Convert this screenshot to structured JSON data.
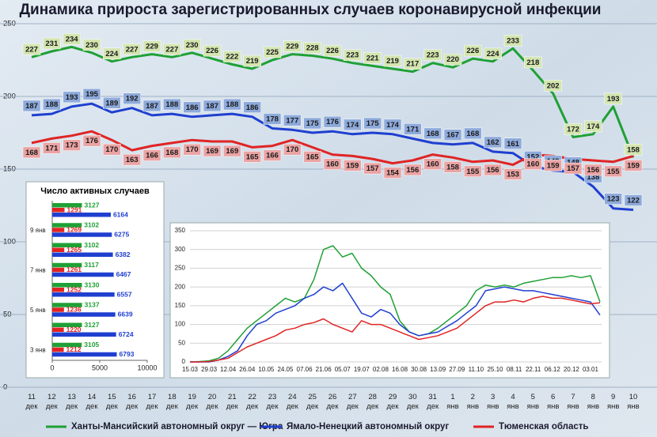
{
  "chart_data": [
    {
      "type": "line",
      "title": "Динамика прироста зарегистрированных случаев коронавирусной инфекции",
      "categories": [
        "11 дек",
        "12 дек",
        "13 дек",
        "14 дек",
        "15 дек",
        "16 дек",
        "17 дек",
        "18 дек",
        "19 дек",
        "20 дек",
        "21 дек",
        "22 дек",
        "23 дек",
        "24 дек",
        "25 дек",
        "26 дек",
        "27 дек",
        "28 дек",
        "29 дек",
        "30 дек",
        "31 дек",
        "1 янв",
        "2 янв",
        "3 янв",
        "4 янв",
        "5 янв",
        "6 янв",
        "7 янв",
        "8 янв",
        "9 янв",
        "10 янв"
      ],
      "series": [
        {
          "name": "Ханты-Мансийский автономный округ — Югра",
          "color": "#1fa035",
          "values": [
            227,
            231,
            234,
            230,
            224,
            227,
            229,
            227,
            230,
            226,
            222,
            219,
            225,
            229,
            228,
            226,
            223,
            221,
            219,
            217,
            223,
            220,
            226,
            224,
            233,
            218,
            202,
            172,
            174,
            193,
            158
          ]
        },
        {
          "name": "Ямало-Ненецкий автономный округ",
          "color": "#1f3fd0",
          "values": [
            187,
            188,
            193,
            195,
            189,
            192,
            187,
            188,
            186,
            187,
            188,
            186,
            178,
            177,
            175,
            176,
            174,
            175,
            174,
            171,
            168,
            167,
            168,
            162,
            161,
            152,
            149,
            148,
            138,
            123,
            122
          ]
        },
        {
          "name": "Тюменская область",
          "color": "#e02424",
          "values": [
            168,
            171,
            173,
            176,
            170,
            163,
            166,
            168,
            170,
            169,
            169,
            165,
            166,
            170,
            165,
            160,
            159,
            157,
            154,
            156,
            160,
            158,
            155,
            156,
            153,
            160,
            159,
            157,
            156,
            155,
            159
          ]
        }
      ],
      "ylim": [
        0,
        250
      ],
      "yticks": [
        0,
        50,
        100,
        150,
        200,
        250
      ],
      "grid": true
    },
    {
      "type": "barh",
      "title": "Число активных случаев",
      "categories": [
        null,
        "9 янв",
        null,
        "7 янв",
        null,
        "5 янв",
        null,
        "3 янв"
      ],
      "series": [
        {
          "color": "#1fa035",
          "values": [
            3127,
            3102,
            3102,
            3117,
            3130,
            3137,
            3127,
            3105
          ]
        },
        {
          "color": "#e02424",
          "values": [
            1291,
            1269,
            1265,
            1261,
            1252,
            1236,
            1220,
            1212
          ]
        },
        {
          "color": "#1f3fd0",
          "values": [
            6164,
            6275,
            6382,
            6467,
            6557,
            6639,
            6724,
            6793
          ]
        }
      ],
      "xlim": [
        0,
        10000
      ],
      "xticks": [
        0,
        5000,
        10000
      ]
    },
    {
      "type": "line",
      "categories": [
        "15.03",
        null,
        "29.03",
        null,
        "12.04",
        null,
        "26.04",
        null,
        "10.05",
        null,
        "24.05",
        null,
        "07.06",
        null,
        "21.06",
        null,
        "05.07",
        null,
        "19.07",
        null,
        "02.08",
        null,
        "16.08",
        null,
        "30.08",
        null,
        "13.09",
        null,
        "27.09",
        null,
        "11.10",
        null,
        "25.10",
        null,
        "08.11",
        null,
        "22.11",
        null,
        "06.12",
        null,
        "20.12",
        null,
        "03.01",
        null
      ],
      "series": [
        {
          "color": "#1fa035",
          "values": [
            0,
            1,
            3,
            10,
            30,
            60,
            90,
            110,
            130,
            150,
            170,
            160,
            170,
            220,
            300,
            310,
            280,
            290,
            250,
            230,
            200,
            180,
            110,
            80,
            70,
            75,
            90,
            110,
            130,
            150,
            190,
            205,
            200,
            205,
            200,
            210,
            215,
            220,
            225,
            225,
            230,
            225,
            230,
            160
          ]
        },
        {
          "color": "#1f3fd0",
          "values": [
            0,
            0,
            0,
            5,
            15,
            30,
            70,
            100,
            110,
            130,
            140,
            150,
            170,
            180,
            200,
            190,
            210,
            170,
            130,
            120,
            140,
            130,
            100,
            80,
            70,
            75,
            80,
            95,
            110,
            130,
            150,
            190,
            195,
            200,
            195,
            190,
            190,
            185,
            180,
            175,
            170,
            165,
            160,
            125
          ]
        },
        {
          "color": "#e02424",
          "values": [
            0,
            0,
            1,
            5,
            10,
            25,
            40,
            50,
            60,
            70,
            85,
            90,
            100,
            105,
            115,
            100,
            90,
            80,
            110,
            100,
            100,
            90,
            80,
            70,
            60,
            65,
            70,
            80,
            90,
            110,
            130,
            150,
            160,
            160,
            165,
            160,
            170,
            175,
            170,
            170,
            165,
            160,
            155,
            158
          ]
        }
      ],
      "ylim": [
        0,
        350
      ],
      "yticks": [
        0,
        50,
        100,
        150,
        200,
        250,
        300,
        350
      ],
      "grid": true
    }
  ]
}
